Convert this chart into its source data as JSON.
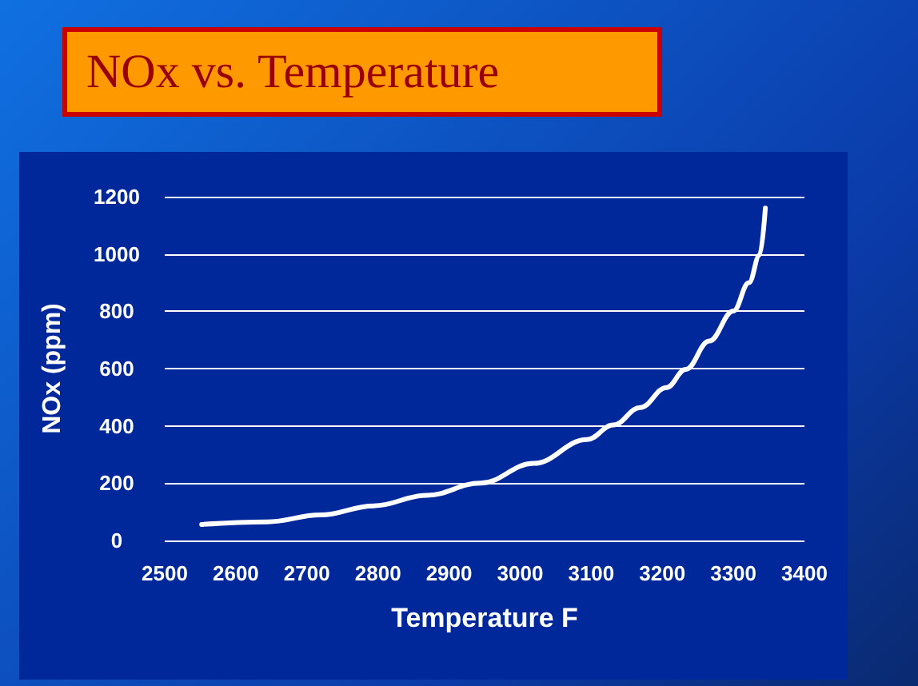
{
  "chart_data": {
    "type": "line",
    "title": "NOx vs. Temperature",
    "xlabel": "Temperature F",
    "ylabel": "NOx (ppm)",
    "x": [
      2552,
      2644,
      2719,
      2794,
      2869,
      2944,
      3019,
      3094,
      3131,
      3169,
      3206,
      3233,
      3266,
      3300,
      3322,
      3337,
      3345
    ],
    "series": [
      {
        "color": "#ffffff",
        "values": [
          56,
          65,
          89,
          121,
          158,
          200,
          269,
          352,
          403,
          464,
          534,
          597,
          696,
          801,
          900,
          996,
          1160
        ]
      }
    ],
    "xlim": [
      2500,
      3400
    ],
    "xticks": [
      2500,
      2600,
      2700,
      2800,
      2900,
      3000,
      3100,
      3200,
      3300,
      3400
    ],
    "ylim": [
      0,
      1200
    ],
    "yticks": [
      0,
      200,
      400,
      600,
      800,
      1000,
      1200
    ],
    "grid": "y",
    "marker": "none",
    "line_style": "solid"
  }
}
